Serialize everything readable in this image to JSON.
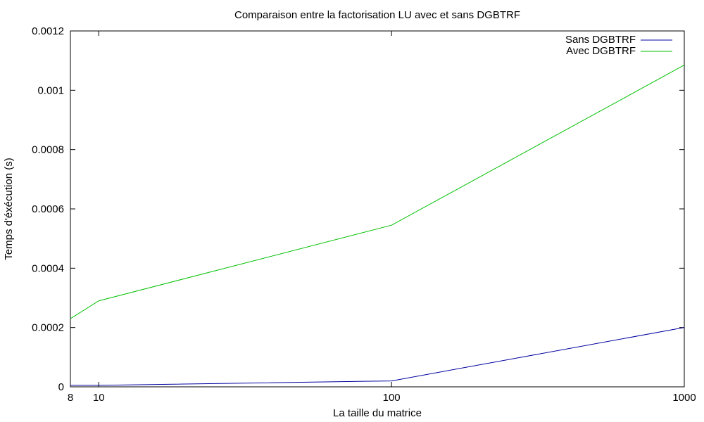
{
  "chart_data": {
    "type": "line",
    "title": "Comparaison entre la factorisation LU avec et sans DGBTRF",
    "xlabel": "La taille du matrice",
    "ylabel": "Temps d'éxécution (s)",
    "x_scale": "log",
    "x": [
      8,
      10,
      100,
      1000
    ],
    "x_ticks": [
      "8",
      "10",
      "100",
      "1000"
    ],
    "xlim": [
      8,
      1000
    ],
    "ylim": [
      0,
      0.0012
    ],
    "y_ticks": [
      "0",
      "0.0002",
      "0.0004",
      "0.0006",
      "0.0008",
      "0.001",
      "0.0012"
    ],
    "grid": false,
    "legend_position": "top-right",
    "series": [
      {
        "name": "Sans DGBTRF",
        "color": "#0000a0",
        "values": [
          5e-06,
          5e-06,
          2e-05,
          0.0002
        ]
      },
      {
        "name": "Avec DGBTRF",
        "color": "#00c000",
        "values": [
          0.00023,
          0.00029,
          0.000545,
          0.001085
        ]
      }
    ]
  }
}
